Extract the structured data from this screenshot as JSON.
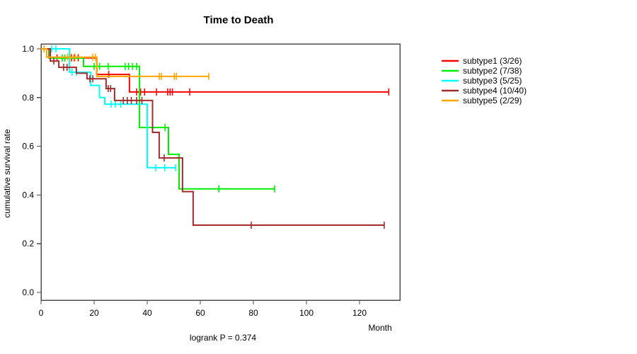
{
  "chart_data": {
    "type": "line",
    "subtype": "kaplan-meier-step",
    "title": "Time to Death",
    "xlabel": "Month",
    "ylabel": "cumulative survival rate",
    "footnote": "logrank P = 0.374",
    "xlim": [
      0,
      135.2
    ],
    "ylim": [
      0.0,
      1.0
    ],
    "xticks": [
      0,
      20,
      40,
      60,
      80,
      100,
      120
    ],
    "yticks": [
      "0.0",
      "0.2",
      "0.4",
      "0.6",
      "0.8",
      "1.0"
    ],
    "grid": false,
    "legend_position": "right-outside",
    "censor_mark": "vertical-tick",
    "series": [
      {
        "name": "subtype1 (3/26)",
        "color": "#ff0000",
        "steps": [
          [
            0,
            1.0
          ],
          [
            3,
            0.963
          ],
          [
            21,
            0.895
          ],
          [
            33.3,
            0.823
          ],
          [
            131,
            0.823
          ]
        ],
        "censors": [
          [
            6,
            0.963
          ],
          [
            11.5,
            0.963
          ],
          [
            12.5,
            0.963
          ],
          [
            14,
            0.963
          ],
          [
            25.5,
            0.895
          ],
          [
            36,
            0.823
          ],
          [
            37.5,
            0.823
          ],
          [
            39,
            0.823
          ],
          [
            43.5,
            0.823
          ],
          [
            47.7,
            0.823
          ],
          [
            48.6,
            0.823
          ],
          [
            49.5,
            0.823
          ],
          [
            56,
            0.823
          ],
          [
            131,
            0.823
          ]
        ]
      },
      {
        "name": "subtype2 (7/38)",
        "color": "#00ee00",
        "steps": [
          [
            0,
            1.0
          ],
          [
            3.2,
            0.962
          ],
          [
            16,
            0.928
          ],
          [
            37.1,
            0.677
          ],
          [
            48,
            0.567
          ],
          [
            52,
            0.425
          ],
          [
            88,
            0.425
          ]
        ],
        "censors": [
          [
            8,
            0.962
          ],
          [
            9,
            0.962
          ],
          [
            20,
            0.928
          ],
          [
            22,
            0.928
          ],
          [
            25.3,
            0.928
          ],
          [
            31.7,
            0.928
          ],
          [
            33,
            0.928
          ],
          [
            34.5,
            0.928
          ],
          [
            36,
            0.928
          ],
          [
            46.7,
            0.677
          ],
          [
            67,
            0.425
          ],
          [
            88,
            0.425
          ]
        ]
      },
      {
        "name": "subtype3 (5/25)",
        "color": "#00ffff",
        "steps": [
          [
            0,
            1.0
          ],
          [
            10.7,
            0.904
          ],
          [
            18.7,
            0.85
          ],
          [
            22,
            0.8
          ],
          [
            24,
            0.773
          ],
          [
            40,
            0.512
          ],
          [
            50.7,
            0.512
          ]
        ],
        "censors": [
          [
            4,
            1.0
          ],
          [
            5.6,
            1.0
          ],
          [
            11.7,
            0.904
          ],
          [
            13.3,
            0.904
          ],
          [
            26.4,
            0.773
          ],
          [
            28,
            0.773
          ],
          [
            30,
            0.773
          ],
          [
            43.2,
            0.512
          ],
          [
            46.6,
            0.512
          ],
          [
            50.7,
            0.512
          ]
        ]
      },
      {
        "name": "subtype4 (10/40)",
        "color": "#a52a2a",
        "steps": [
          [
            0,
            1.0
          ],
          [
            3.5,
            0.95
          ],
          [
            6.7,
            0.924
          ],
          [
            13.3,
            0.9
          ],
          [
            17.3,
            0.877
          ],
          [
            24.5,
            0.837
          ],
          [
            27.7,
            0.788
          ],
          [
            42,
            0.657
          ],
          [
            44.5,
            0.552
          ],
          [
            53.3,
            0.414
          ],
          [
            57.3,
            0.276
          ],
          [
            129.3,
            0.276
          ]
        ],
        "censors": [
          [
            4.8,
            0.95
          ],
          [
            8.5,
            0.924
          ],
          [
            9.8,
            0.924
          ],
          [
            18.4,
            0.877
          ],
          [
            19.5,
            0.877
          ],
          [
            25.3,
            0.837
          ],
          [
            26.2,
            0.837
          ],
          [
            31,
            0.788
          ],
          [
            32.5,
            0.788
          ],
          [
            34,
            0.788
          ],
          [
            36,
            0.788
          ],
          [
            38,
            0.788
          ],
          [
            46.4,
            0.552
          ],
          [
            79.2,
            0.276
          ],
          [
            129.3,
            0.276
          ]
        ]
      },
      {
        "name": "subtype5 (2/29)",
        "color": "#ffa500",
        "steps": [
          [
            0,
            1.0
          ],
          [
            2.1,
            0.966
          ],
          [
            21,
            0.887
          ],
          [
            63.2,
            0.887
          ]
        ],
        "censors": [
          [
            1.1,
            1.0
          ],
          [
            10,
            0.966
          ],
          [
            11.2,
            0.966
          ],
          [
            12.8,
            0.966
          ],
          [
            19.5,
            0.966
          ],
          [
            20.5,
            0.966
          ],
          [
            44.5,
            0.887
          ],
          [
            45.3,
            0.887
          ],
          [
            50.2,
            0.887
          ],
          [
            51,
            0.887
          ],
          [
            63.2,
            0.887
          ]
        ]
      }
    ]
  }
}
